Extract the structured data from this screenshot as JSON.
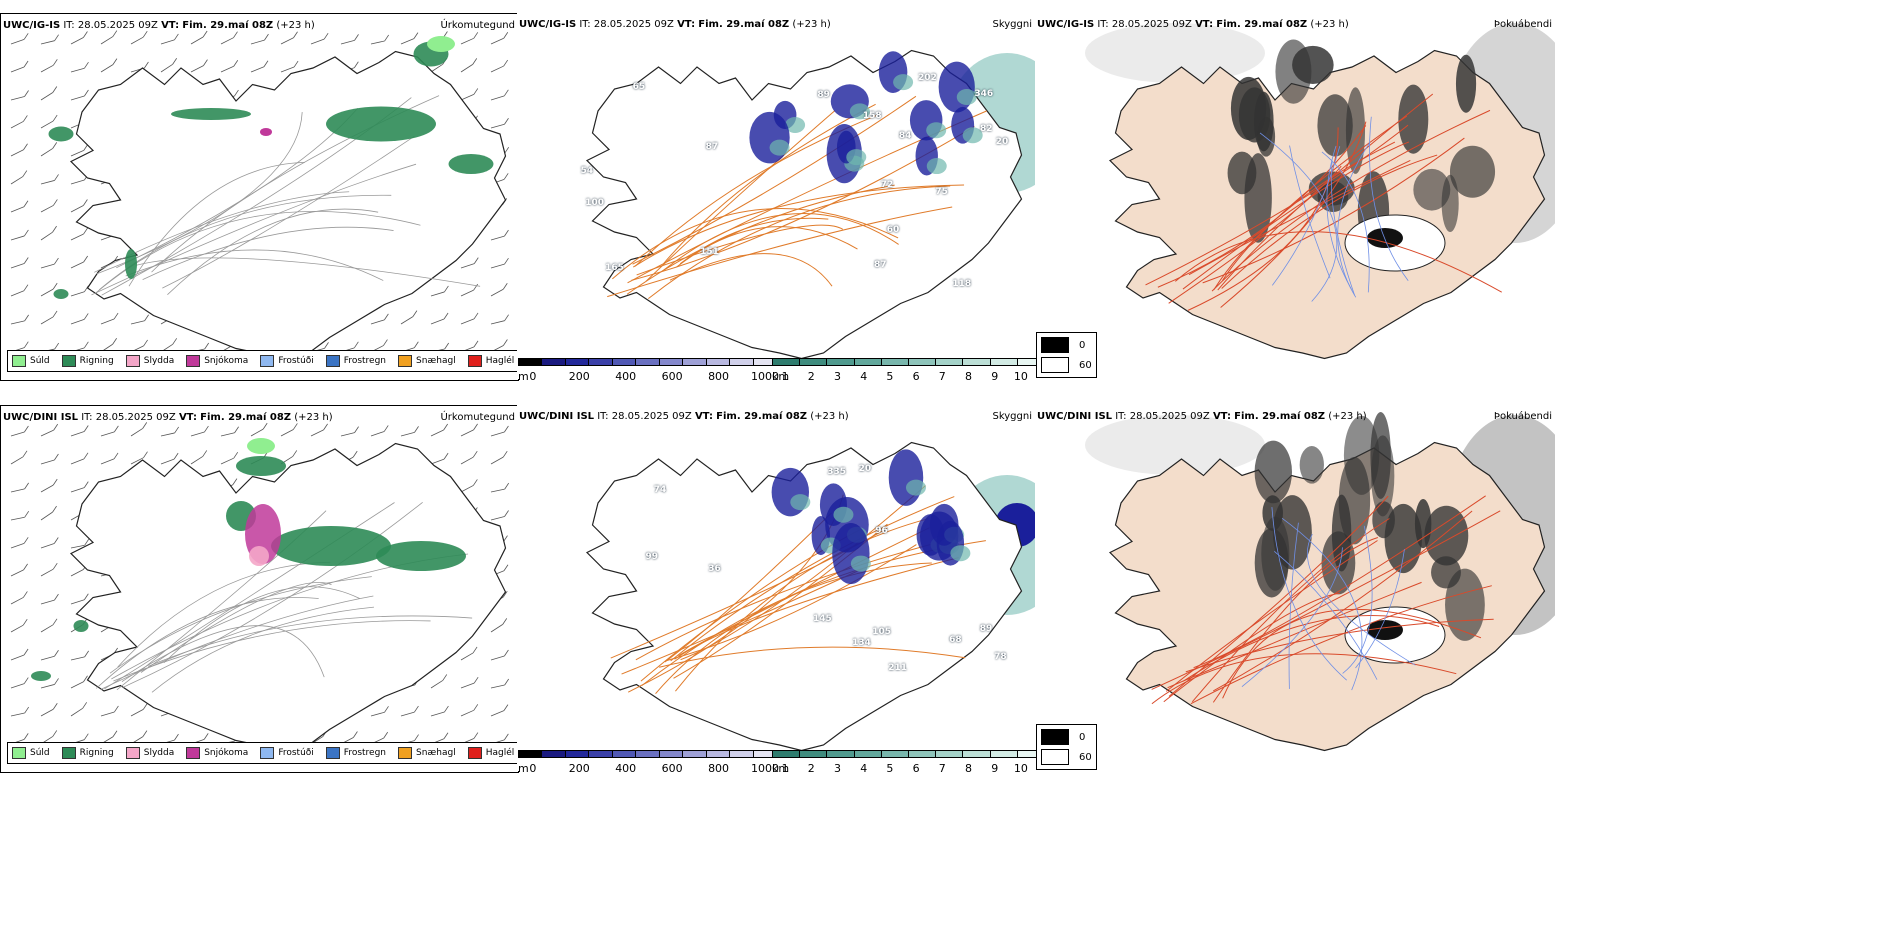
{
  "panels": [
    {
      "model": "UWC/IG-IS",
      "it_label": "IT:",
      "it": "28.05.2025 09Z",
      "vt_label": "VT:",
      "vt": "Fim. 29.maí 08Z",
      "lead": "(+23 h)",
      "title": "Úrkomutegund"
    },
    {
      "model": "UWC/IG-IS",
      "it_label": "IT:",
      "it": "28.05.2025 09Z",
      "vt_label": "VT:",
      "vt": "Fim. 29.maí 08Z",
      "lead": "(+23 h)",
      "title": "Skyggni"
    },
    {
      "model": "UWC/IG-IS",
      "it_label": "IT:",
      "it": "28.05.2025 09Z",
      "vt_label": "VT:",
      "vt": "Fim. 29.maí 08Z",
      "lead": "(+23 h)",
      "title": "Þokuábendi"
    },
    {
      "model": "UWC/DINI ISL",
      "it_label": "IT:",
      "it": "28.05.2025 09Z",
      "vt_label": "VT:",
      "vt": "Fim. 29.maí 08Z",
      "lead": "(+23 h)",
      "title": "Úrkomutegund"
    },
    {
      "model": "UWC/DINI ISL",
      "it_label": "IT:",
      "it": "28.05.2025 09Z",
      "vt_label": "VT:",
      "vt": "Fim. 29.maí 08Z",
      "lead": "(+23 h)",
      "title": "Skyggni"
    },
    {
      "model": "UWC/DINI ISL",
      "it_label": "IT:",
      "it": "28.05.2025 09Z",
      "vt_label": "VT:",
      "vt": "Fim. 29.maí 08Z",
      "lead": "(+23 h)",
      "title": "Þokuábendi"
    }
  ],
  "precip_legend": [
    {
      "label": "Súld",
      "color": "#90ee90"
    },
    {
      "label": "Rigning",
      "color": "#2e8b57"
    },
    {
      "label": "Slydda",
      "color": "#f4a6c8"
    },
    {
      "label": "Snjókoma",
      "color": "#c0399a"
    },
    {
      "label": "Frostúði",
      "color": "#8fb8f0"
    },
    {
      "label": "Frostregn",
      "color": "#3b74c4"
    },
    {
      "label": "Snæhagl",
      "color": "#f0a020"
    },
    {
      "label": "Haglél",
      "color": "#e0201c"
    }
  ],
  "ceiling_bar": {
    "unit": "m",
    "ticks": [
      "0",
      "200",
      "400",
      "600",
      "800",
      "1000"
    ]
  },
  "vis_bar": {
    "unit": "km",
    "ticks": [
      "1",
      "2",
      "3",
      "4",
      "5",
      "6",
      "7",
      "8",
      "9",
      "10"
    ]
  },
  "fog_legend": [
    {
      "label": "0",
      "color": "#000000"
    },
    {
      "label": "60",
      "color": "#ffffff"
    }
  ],
  "ceiling_labels_top": [
    "84",
    "89",
    "72",
    "54",
    "151",
    "82",
    "100",
    "118",
    "75",
    "65",
    "87",
    "60",
    "158",
    "165",
    "346",
    "20",
    "87",
    "202"
  ],
  "ceiling_labels_bottom": [
    "68",
    "89",
    "145",
    "335",
    "105",
    "96",
    "211",
    "78",
    "74",
    "134",
    "99",
    "36",
    "20"
  ],
  "colors": {
    "rain": "#2e8b57",
    "drizzle": "#90ee90",
    "snow": "#c0399a",
    "sleet": "#f4a6c8",
    "road_orange": "#e07b2a",
    "road_red": "#d94a2b",
    "river": "#6f8fe6",
    "land": "#f3ddcb",
    "teal": "#6fb8ae",
    "navy": "#1a1f9b"
  }
}
